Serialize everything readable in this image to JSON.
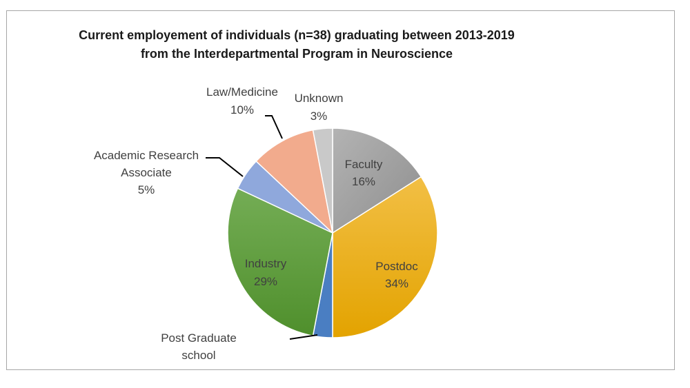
{
  "chart_data": {
    "type": "pie",
    "title_lines": [
      "Current employement of individuals (n=38) graduating between 2013-2019",
      "from the Interdepartmental Program in Neuroscience"
    ],
    "slices": [
      {
        "label": "Faculty",
        "value": 16,
        "value_label": "16%",
        "color": "#a5a5a5"
      },
      {
        "label": "Postdoc",
        "value": 34,
        "value_label": "34%",
        "color": "#ecac12"
      },
      {
        "label": "Post Graduate school",
        "value": 3,
        "value_label": "",
        "color": "#4a7ec2"
      },
      {
        "label": "Industry",
        "value": 29,
        "value_label": "29%",
        "color": "#5f9e3b"
      },
      {
        "label": "Academic Research Associate",
        "value": 5,
        "value_label": "5%",
        "color": "#8fa8dc"
      },
      {
        "label": "Law/Medicine",
        "value": 10,
        "value_label": "10%",
        "color": "#f2ab8d"
      },
      {
        "label": "Unknown",
        "value": 3,
        "value_label": "3%",
        "color": "#c9c9c9"
      }
    ],
    "start_angle_deg": 0,
    "direction": "clockwise",
    "legend": "none",
    "data_labels": [
      {
        "slice": 0,
        "lines": [
          "Faculty",
          "16%"
        ]
      },
      {
        "slice": 1,
        "lines": [
          "Postdoc",
          "34%"
        ]
      },
      {
        "slice": 2,
        "lines": [
          "Post Graduate",
          "school"
        ]
      },
      {
        "slice": 3,
        "lines": [
          "Industry",
          "29%"
        ]
      },
      {
        "slice": 4,
        "lines": [
          "Academic Research",
          "Associate",
          "5%"
        ]
      },
      {
        "slice": 5,
        "lines": [
          "Law/Medicine",
          "10%"
        ]
      },
      {
        "slice": 6,
        "lines": [
          "Unknown",
          "3%"
        ]
      }
    ]
  }
}
